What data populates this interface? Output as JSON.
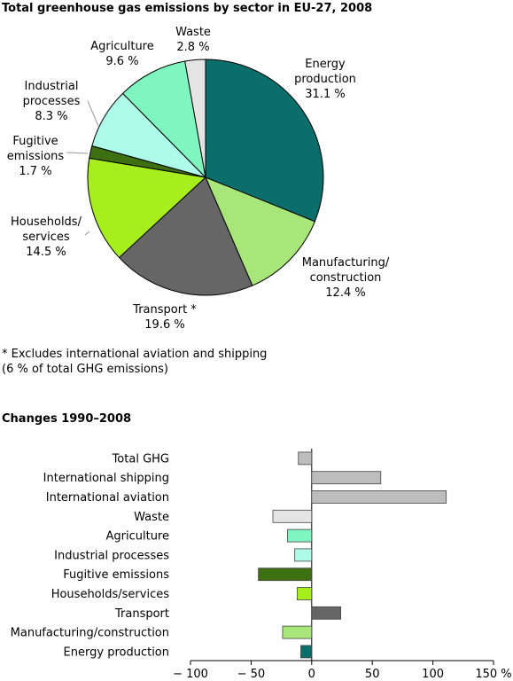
{
  "chart_data": [
    {
      "type": "pie",
      "title": "Total greenhouse gas emissions by sector in EU-27, 2008",
      "slices": [
        {
          "label_lines": [
            "Energy",
            "production",
            "31.1 %"
          ],
          "value": 31.1,
          "color": "#0c6e6a"
        },
        {
          "label_lines": [
            "Manufacturing/",
            "construction",
            "12.4 %"
          ],
          "value": 12.4,
          "color": "#a8e67a"
        },
        {
          "label_lines": [
            "Transport *",
            "19.6 %"
          ],
          "value": 19.6,
          "color": "#666666"
        },
        {
          "label_lines": [
            "Households/",
            "services",
            "14.5 %"
          ],
          "value": 14.5,
          "color": "#a7ee1e"
        },
        {
          "label_lines": [
            "Fugitive",
            "emissions",
            "1.7 %"
          ],
          "value": 1.7,
          "color": "#3c7010"
        },
        {
          "label_lines": [
            "Industrial",
            "processes",
            "8.3 %"
          ],
          "value": 8.3,
          "color": "#aefbe9"
        },
        {
          "label_lines": [
            "Agriculture",
            "9.6 %"
          ],
          "value": 9.6,
          "color": "#7ff6bf"
        },
        {
          "label_lines": [
            "Waste",
            "2.8 %"
          ],
          "value": 2.8,
          "color": "#e4e4e4"
        }
      ],
      "footnote_lines": [
        "* Excludes international aviation and shipping",
        "(6 % of total GHG emissions)"
      ]
    },
    {
      "type": "bar",
      "orientation": "horizontal",
      "title": "Changes 1990–2008",
      "categories": [
        "Total GHG",
        "International shipping",
        "International aviation",
        "Waste",
        "Agriculture",
        "Industrial processes",
        "Fugitive emissions",
        "Households/services",
        "Transport",
        "Manufacturing/construction",
        "Energy production"
      ],
      "values": [
        -11,
        57,
        111,
        -32,
        -20,
        -14,
        -44,
        -12,
        24,
        -24,
        -9
      ],
      "colors": [
        "#bdbdbd",
        "#bdbdbd",
        "#bdbdbd",
        "#e4e4e4",
        "#7ff6bf",
        "#aefbe9",
        "#3c7010",
        "#a7ee1e",
        "#666666",
        "#a8e67a",
        "#0c6e6a"
      ],
      "xlim": [
        -100,
        150
      ],
      "ticks": [
        -100,
        -50,
        0,
        50,
        100,
        150
      ],
      "tick_labels": [
        "− 100",
        "− 50",
        "0",
        "50",
        "100",
        "150 %"
      ]
    }
  ]
}
